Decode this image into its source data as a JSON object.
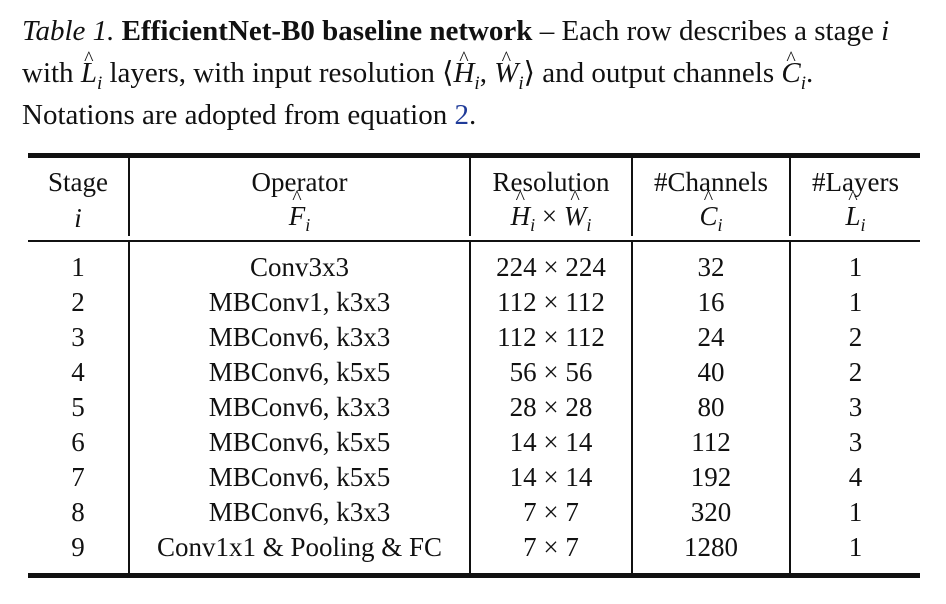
{
  "caption": {
    "label": "Table 1.",
    "title": "EfficientNet-B0 baseline network",
    "text_part1": " – Each row describes a stage ",
    "var_i": "i",
    "text_part2": " with ",
    "var_L": "L",
    "text_part3": " layers, with input resolution ⟨",
    "var_H": "H",
    "var_comma": ", ",
    "var_W": "W",
    "text_part4": "⟩ and output channels ",
    "var_C": "C",
    "text_part5": ". Notations are adopted from equation ",
    "eq_ref": "2",
    "text_end": "."
  },
  "table": {
    "headers": [
      {
        "title": "Stage",
        "symbol": "i"
      },
      {
        "title": "Operator",
        "symbol": "F"
      },
      {
        "title": "Resolution",
        "symbol_a": "H",
        "symbol_times": " × ",
        "symbol_b": "W"
      },
      {
        "title": "#Channels",
        "symbol": "C"
      },
      {
        "title": "#Layers",
        "symbol": "L"
      }
    ],
    "subscript": "i",
    "rows": [
      {
        "stage": "1",
        "operator": "Conv3x3",
        "resolution": "224 × 224",
        "channels": "32",
        "layers": "1"
      },
      {
        "stage": "2",
        "operator": "MBConv1, k3x3",
        "resolution": "112 × 112",
        "channels": "16",
        "layers": "1"
      },
      {
        "stage": "3",
        "operator": "MBConv6, k3x3",
        "resolution": "112 × 112",
        "channels": "24",
        "layers": "2"
      },
      {
        "stage": "4",
        "operator": "MBConv6, k5x5",
        "resolution": "56 × 56",
        "channels": "40",
        "layers": "2"
      },
      {
        "stage": "5",
        "operator": "MBConv6, k3x3",
        "resolution": "28 × 28",
        "channels": "80",
        "layers": "3"
      },
      {
        "stage": "6",
        "operator": "MBConv6, k5x5",
        "resolution": "14 × 14",
        "channels": "112",
        "layers": "3"
      },
      {
        "stage": "7",
        "operator": "MBConv6, k5x5",
        "resolution": "14 × 14",
        "channels": "192",
        "layers": "4"
      },
      {
        "stage": "8",
        "operator": "MBConv6, k3x3",
        "resolution": "7 × 7",
        "channels": "320",
        "layers": "1"
      },
      {
        "stage": "9",
        "operator": "Conv1x1 & Pooling & FC",
        "resolution": "7 × 7",
        "channels": "1280",
        "layers": "1"
      }
    ]
  },
  "colors": {
    "text": "#111111",
    "link": "#1f3b99"
  }
}
